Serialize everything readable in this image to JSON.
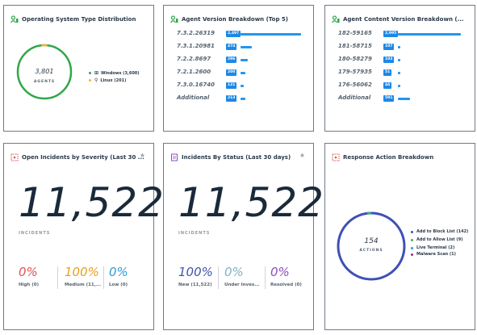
{
  "widgets": {
    "os": {
      "title": "Operating System Type Distribution",
      "total": "3,801",
      "total_label": "AGENTS",
      "legend": [
        {
          "label": "Windows (3,600)",
          "color": "#2fa74a"
        },
        {
          "label": "Linux (201)",
          "color": "#f2b531"
        }
      ]
    },
    "agent_version": {
      "title": "Agent Version Breakdown (Top 5)",
      "rows": [
        {
          "label": "7.3.2.26319",
          "badge": "2,497",
          "value": 2497
        },
        {
          "label": "7.3.1.20981",
          "badge": "474",
          "value": 474
        },
        {
          "label": "7.2.2.8697",
          "badge": "296",
          "value": 296
        },
        {
          "label": "7.2.1.2600",
          "badge": "200",
          "value": 200
        },
        {
          "label": "7.3.0.16740",
          "badge": "121",
          "value": 121
        },
        {
          "label": "Additional",
          "badge": "213",
          "value": 213
        }
      ]
    },
    "content_version": {
      "title": "Agent Content Version Breakdown (...",
      "rows": [
        {
          "label": "182-59165",
          "badge": "2,995",
          "value": 2995
        },
        {
          "label": "181-58715",
          "badge": "107",
          "value": 107
        },
        {
          "label": "180-58279",
          "badge": "103",
          "value": 103
        },
        {
          "label": "179-57935",
          "badge": "51",
          "value": 51
        },
        {
          "label": "176-56062",
          "badge": "44",
          "value": 44
        },
        {
          "label": "Additional",
          "badge": "591",
          "value": 591
        }
      ]
    },
    "incidents_severity": {
      "title": "Open Incidents by Severity (Last 30 ...",
      "big": "11,522",
      "sub": "INCIDENTS",
      "stats": [
        {
          "pct": "0%",
          "label": "High (0)",
          "color": "#e05252"
        },
        {
          "pct": "100%",
          "label": "Medium (11,...",
          "color": "#e8a020"
        },
        {
          "pct": "0%",
          "label": "Low (0)",
          "color": "#2e9bd6"
        }
      ]
    },
    "incidents_status": {
      "title": "Incidents By Status (Last 30 days)",
      "big": "11,522",
      "sub": "INCIDENTS",
      "stats": [
        {
          "pct": "100%",
          "label": "New (11,522)",
          "color": "#3f55a8"
        },
        {
          "pct": "0%",
          "label": "Under Inves...",
          "color": "#7fb2c8"
        },
        {
          "pct": "0%",
          "label": "Resolved (0)",
          "color": "#8a4fc0"
        }
      ]
    },
    "response_action": {
      "title": "Response Action Breakdown",
      "total": "154",
      "total_label": "ACTIONS",
      "legend": [
        {
          "label": "Add to Block List (142)",
          "color": "#3f51b5"
        },
        {
          "label": "Add to Allow List (9)",
          "color": "#4caf50"
        },
        {
          "label": "Live Terminal (2)",
          "color": "#2196f3"
        },
        {
          "label": "Malware Scan (1)",
          "color": "#9c27b0"
        }
      ]
    }
  }
}
